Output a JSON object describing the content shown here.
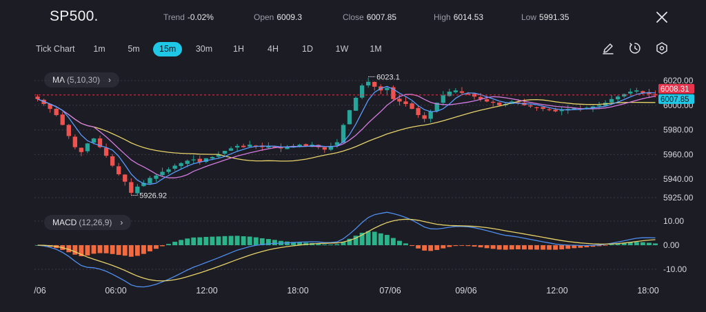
{
  "header": {
    "symbol": "SP500.",
    "trend_label": "Trend",
    "trend_value": "-0.02%",
    "open_label": "Open",
    "open_value": "6009.3",
    "close_label": "Close",
    "close_value": "6007.85",
    "high_label": "High",
    "high_value": "6014.53",
    "low_label": "Low",
    "low_value": "5991.35"
  },
  "timeframes": [
    "Tick Chart",
    "1m",
    "5m",
    "15m",
    "30m",
    "1H",
    "4H",
    "1D",
    "1W",
    "1M"
  ],
  "active_timeframe": "15m",
  "tools": [
    "draw-pencil-icon",
    "timer-reset-icon",
    "settings-hex-icon"
  ],
  "ma_indicator": {
    "label": "MA",
    "params": "(5,10,30)"
  },
  "macd_indicator": {
    "label": "MACD",
    "params": "(12,26,9)"
  },
  "colors": {
    "up": "#26a69a",
    "down": "#ef5350",
    "ma5": "#5b9cff",
    "ma10": "#d57be0",
    "ma30": "#e8d46a",
    "macd_line": "#4f8ff0",
    "signal_line": "#e8d46a",
    "hist_up": "#2bb38a",
    "hist_down": "#f26a3d",
    "active_tf": "#1ec8e6",
    "price_tag_red": "#e8344c",
    "price_tag_cyan": "#1ec8e6"
  },
  "chart_data": {
    "type": "candlestick",
    "price_axis_ticks": [
      6020.0,
      6000.0,
      5980.0,
      5960.0,
      5940.0,
      5925.0
    ],
    "price_axis_labels": [
      "6020.00",
      "6000.00",
      "5980.00",
      "5960.00",
      "5940.00",
      "5925.00"
    ],
    "price_range": [
      5920,
      6025
    ],
    "current_price_red": "6008.31",
    "current_price_cyan": "6007.85",
    "annotation_high": "6023.1",
    "annotation_low": "5926.92",
    "macd_axis_ticks": [
      10.0,
      0.0,
      -10.0
    ],
    "macd_axis_labels": [
      "10.00",
      "0.00",
      "-10.00"
    ],
    "macd_range": [
      -12,
      12
    ],
    "x_axis_labels": [
      "/06",
      "06:00",
      "12:00",
      "18:00",
      "07/06",
      "09/06",
      "12:00",
      "18:00"
    ],
    "close_trajectory": [
      6005,
      6001,
      5997,
      5992,
      5984,
      5975,
      5966,
      5962,
      5969,
      5973,
      5966,
      5959,
      5951,
      5944,
      5938,
      5929,
      5934,
      5937,
      5941,
      5943,
      5946,
      5948,
      5951,
      5953,
      5955,
      5956,
      5954,
      5957,
      5958,
      5960,
      5963,
      5965,
      5967,
      5966,
      5968,
      5967,
      5966,
      5967,
      5966,
      5965,
      5966,
      5967,
      5968,
      5967,
      5968,
      5966,
      5964,
      5967,
      5970,
      5984,
      5996,
      6006,
      6016,
      6019,
      6015,
      6012,
      6014,
      6005,
      6003,
      6001,
      5997,
      5992,
      5989,
      5995,
      6002,
      6008,
      6011,
      6012,
      6010,
      6009,
      6007,
      6005,
      6003,
      6002,
      6000,
      6001,
      6003,
      6002,
      6000,
      5999,
      5998,
      5997,
      5996,
      5995,
      5996,
      5997,
      5998,
      5997,
      5998,
      5999,
      6000,
      6002,
      6005,
      6007,
      6009,
      6011,
      6012,
      6010,
      6009,
      6008
    ]
  }
}
